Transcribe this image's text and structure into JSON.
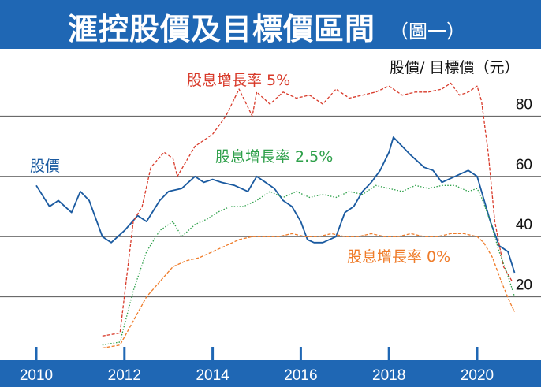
{
  "title": "滙控股價及目標價區間",
  "subtitle": "（圖一）",
  "chart_data": {
    "type": "line",
    "ylabel": "股價/ 目標價（元）",
    "x_ticks": [
      "2010",
      "2012",
      "2014",
      "2016",
      "2018",
      "2020"
    ],
    "y_ticks": [
      "20",
      "40",
      "60",
      "80"
    ],
    "ylim": [
      0,
      100
    ],
    "xlim": [
      2010,
      2021.1
    ],
    "grid": true,
    "series": [
      {
        "name": "股價",
        "color": "#1a5aa0",
        "style": "solid",
        "x": [
          2010.0,
          2010.3,
          2010.5,
          2010.8,
          2011.0,
          2011.2,
          2011.5,
          2011.7,
          2012.0,
          2012.3,
          2012.5,
          2012.8,
          2013.0,
          2013.3,
          2013.6,
          2013.8,
          2014.0,
          2014.2,
          2014.5,
          2014.8,
          2015.0,
          2015.2,
          2015.4,
          2015.6,
          2015.8,
          2016.0,
          2016.15,
          2016.3,
          2016.5,
          2016.8,
          2017.0,
          2017.2,
          2017.4,
          2017.6,
          2017.8,
          2018.0,
          2018.1,
          2018.3,
          2018.5,
          2018.8,
          2019.0,
          2019.2,
          2019.5,
          2019.8,
          2020.0,
          2020.1,
          2020.3,
          2020.5,
          2020.7,
          2020.85
        ],
        "values": [
          57,
          50,
          52,
          48,
          55,
          52,
          40,
          38,
          42,
          47,
          45,
          52,
          55,
          56,
          60,
          58,
          59,
          58,
          57,
          55,
          60,
          58,
          56,
          52,
          50,
          45,
          39,
          38,
          38,
          40,
          48,
          50,
          55,
          58,
          62,
          68,
          73,
          70,
          67,
          63,
          62,
          58,
          60,
          62,
          60,
          55,
          45,
          37,
          35,
          28
        ]
      },
      {
        "name": "股息增長率 5%",
        "color": "#d83a2a",
        "style": "dashed",
        "x": [
          2011.5,
          2011.9,
          2012.2,
          2012.4,
          2012.6,
          2012.9,
          2013.1,
          2013.2,
          2013.4,
          2013.6,
          2013.8,
          2014.0,
          2014.3,
          2014.6,
          2014.9,
          2015.0,
          2015.3,
          2015.6,
          2015.9,
          2016.2,
          2016.5,
          2016.8,
          2017.1,
          2017.4,
          2017.7,
          2018.0,
          2018.3,
          2018.6,
          2018.9,
          2019.2,
          2019.4,
          2019.6,
          2019.8,
          2020.0,
          2020.1,
          2020.25,
          2020.4,
          2020.6,
          2020.8
        ],
        "values": [
          7,
          8,
          45,
          50,
          63,
          68,
          66,
          60,
          65,
          70,
          72,
          74,
          80,
          89,
          80,
          88,
          84,
          88,
          86,
          87,
          84,
          89,
          86,
          87,
          88,
          90,
          87,
          88,
          88,
          89,
          91,
          87,
          88,
          90,
          85,
          68,
          45,
          30,
          25
        ]
      },
      {
        "name": "股息增長率 2.5%",
        "color": "#2ea04a",
        "style": "dotted",
        "x": [
          2011.5,
          2011.9,
          2012.2,
          2012.5,
          2012.8,
          2013.1,
          2013.3,
          2013.6,
          2013.9,
          2014.1,
          2014.4,
          2014.7,
          2015.0,
          2015.3,
          2015.6,
          2015.9,
          2016.2,
          2016.5,
          2016.8,
          2017.1,
          2017.4,
          2017.7,
          2018.0,
          2018.3,
          2018.6,
          2018.9,
          2019.2,
          2019.5,
          2019.8,
          2020.0,
          2020.1,
          2020.3,
          2020.5,
          2020.7,
          2020.85
        ],
        "values": [
          4,
          5,
          22,
          35,
          42,
          45,
          40,
          44,
          46,
          48,
          50,
          50,
          52,
          55,
          53,
          55,
          53,
          54,
          53,
          55,
          54,
          57,
          56,
          55,
          57,
          56,
          57,
          57,
          55,
          56,
          53,
          45,
          35,
          27,
          20
        ]
      },
      {
        "name": "股息增長率 0%",
        "color": "#ef7c2a",
        "style": "dashed",
        "x": [
          2011.5,
          2011.9,
          2012.2,
          2012.5,
          2012.8,
          2013.1,
          2013.4,
          2013.7,
          2014.0,
          2014.3,
          2014.6,
          2014.9,
          2015.2,
          2015.5,
          2015.8,
          2016.1,
          2016.4,
          2016.7,
          2017.0,
          2017.3,
          2017.6,
          2017.9,
          2018.2,
          2018.5,
          2018.8,
          2019.1,
          2019.4,
          2019.7,
          2020.0,
          2020.15,
          2020.35,
          2020.55,
          2020.75,
          2020.85
        ],
        "values": [
          3,
          4,
          12,
          20,
          25,
          30,
          32,
          33,
          35,
          37,
          39,
          40,
          40,
          40,
          41,
          40,
          40,
          41,
          40,
          40,
          41,
          40,
          40,
          41,
          40,
          40,
          41,
          41,
          40,
          38,
          33,
          25,
          18,
          15
        ]
      }
    ],
    "labels": [
      {
        "text": "股價",
        "series": 0
      },
      {
        "text": "股息增長率 5%",
        "series": 1
      },
      {
        "text": "股息增長率 2.5%",
        "series": 2
      },
      {
        "text": "股息增長率 0%",
        "series": 3
      }
    ]
  }
}
